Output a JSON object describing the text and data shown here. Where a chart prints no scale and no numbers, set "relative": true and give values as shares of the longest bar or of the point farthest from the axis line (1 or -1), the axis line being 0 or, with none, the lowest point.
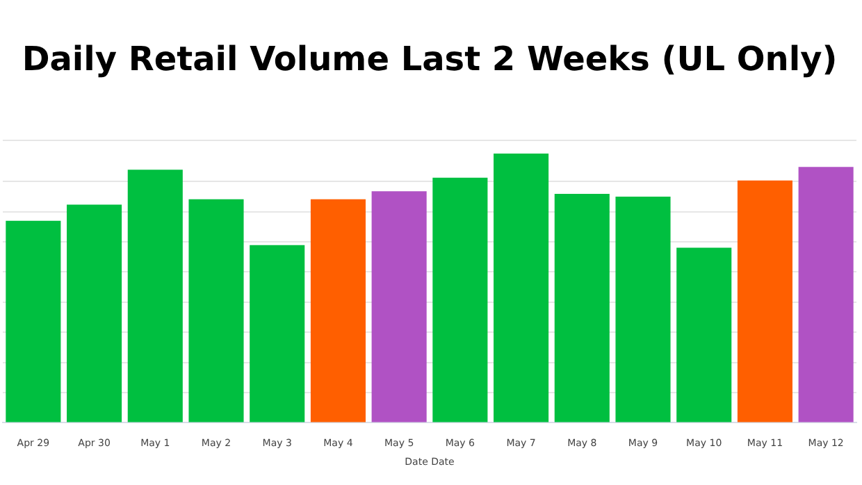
{
  "chart_data": {
    "type": "bar",
    "title": "Daily Retail Volume Last 2 Weeks (UL Only)",
    "xlabel": "Date Date",
    "categories": [
      "Apr 29",
      "Apr 30",
      "May 1",
      "May 2",
      "May 3",
      "May 4",
      "May 5",
      "May 6",
      "May 7",
      "May 8",
      "May 9",
      "May 10",
      "May 11",
      "May 12"
    ],
    "values": [
      0.75,
      0.81,
      0.94,
      0.83,
      0.66,
      0.83,
      0.86,
      0.91,
      1,
      0.85,
      0.84,
      0.65,
      0.9,
      0.95
    ],
    "colors": [
      "#00bf40",
      "#00bf40",
      "#00bf40",
      "#00bf40",
      "#00bf40",
      "#ff5f00",
      "#b052c4",
      "#00bf40",
      "#00bf40",
      "#00bf40",
      "#00bf40",
      "#00bf40",
      "#ff5f00",
      "#b052c4"
    ],
    "relative": true,
    "grid": "y",
    "legend": false
  }
}
